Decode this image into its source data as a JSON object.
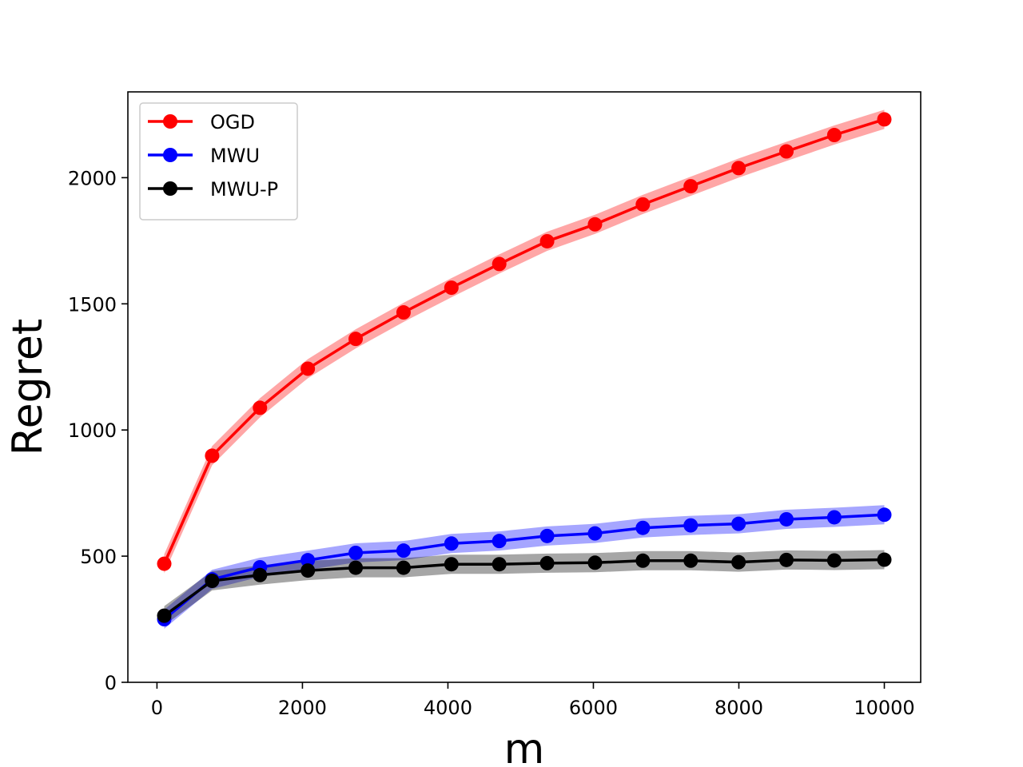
{
  "chart_data": {
    "type": "line",
    "title": "",
    "xlabel": "m",
    "ylabel": "Regret",
    "xlim": [
      -400,
      10500
    ],
    "ylim": [
      0,
      2340
    ],
    "xticks": [
      0,
      2000,
      4000,
      6000,
      8000,
      10000
    ],
    "yticks": [
      0,
      500,
      1000,
      1500,
      2000
    ],
    "grid": false,
    "legend_position": "upper-left",
    "x": [
      100,
      758,
      1416,
      2074,
      2732,
      3390,
      4048,
      4706,
      5364,
      6022,
      6680,
      7338,
      7996,
      8654,
      9312,
      10000
    ],
    "series": [
      {
        "name": "OGD",
        "color": "#ff0000",
        "values": [
          470,
          898,
          1088,
          1243,
          1361,
          1466,
          1564,
          1658,
          1748,
          1815,
          1894,
          1966,
          2038,
          2104,
          2169,
          2231
        ]
      },
      {
        "name": "MWU",
        "color": "#0000ff",
        "values": [
          250,
          408,
          456,
          484,
          513,
          522,
          550,
          560,
          580,
          590,
          612,
          622,
          628,
          646,
          654,
          664
        ]
      },
      {
        "name": "MWU-P",
        "color": "#000000",
        "values": [
          264,
          402,
          425,
          443,
          454,
          454,
          468,
          468,
          472,
          474,
          482,
          482,
          476,
          485,
          483,
          486
        ]
      }
    ]
  }
}
